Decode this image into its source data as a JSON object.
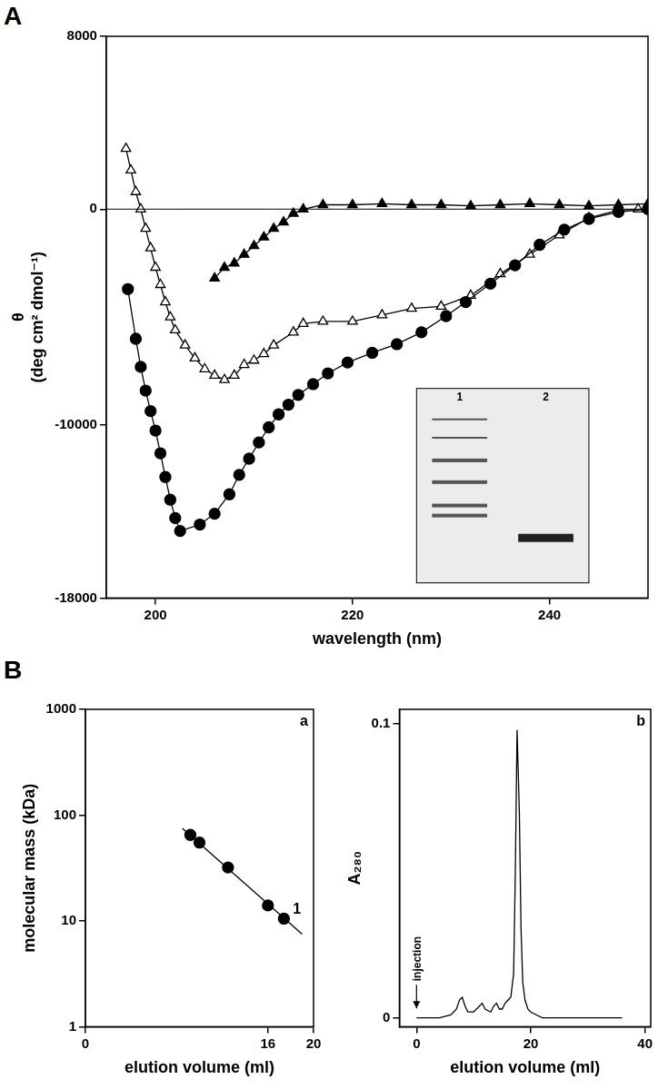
{
  "figure": {
    "panel_labels": [
      "A",
      "B"
    ]
  },
  "chart_data": [
    {
      "type": "line",
      "x_label": "wavelength (nm)",
      "y_label": [
        "θ",
        "(deg cm² dmol⁻¹)"
      ],
      "xlim": [
        195,
        250
      ],
      "xticks": [
        200,
        220,
        240
      ],
      "ylim": [
        -18000,
        8000
      ],
      "yticks": [
        -18000,
        -10000,
        0,
        8000
      ],
      "grid": false,
      "series": [
        {
          "marker": "filled_circle",
          "color": "#000000",
          "x": [
            197.2,
            198,
            198.5,
            199,
            199.5,
            200,
            200.5,
            201,
            201.5,
            202,
            202.5,
            204.5,
            206,
            207.5,
            208.5,
            209.5,
            210.5,
            211.5,
            212.5,
            213.5,
            214.5,
            216,
            217.5,
            219.5,
            222,
            224.5,
            227,
            229.5,
            231.5,
            234,
            236.5,
            239,
            241.5,
            244,
            247,
            250
          ],
          "values": [
            -3700,
            -6000,
            -7300,
            -8400,
            -9350,
            -10250,
            -11300,
            -12400,
            -13450,
            -14300,
            -14900,
            -14600,
            -14100,
            -13200,
            -12300,
            -11550,
            -10800,
            -10100,
            -9500,
            -9050,
            -8600,
            -8100,
            -7600,
            -7100,
            -6650,
            -6250,
            -5700,
            -4950,
            -4300,
            -3450,
            -2600,
            -1650,
            -950,
            -450,
            -130,
            0
          ]
        },
        {
          "marker": "open_triangle",
          "color": "#000000",
          "x": [
            197,
            197.5,
            198,
            198.5,
            199,
            199.5,
            200,
            200.5,
            201,
            201.5,
            202,
            203,
            204,
            205,
            206,
            207,
            208,
            209,
            210,
            211,
            212,
            214,
            215,
            217,
            220,
            223,
            226,
            229,
            232,
            235,
            238,
            241,
            244,
            247,
            249
          ],
          "values": [
            2800,
            1800,
            800,
            0,
            -900,
            -1800,
            -2700,
            -3500,
            -4300,
            -5000,
            -5600,
            -6300,
            -6900,
            -7400,
            -7700,
            -7900,
            -7700,
            -7200,
            -7000,
            -6700,
            -6300,
            -5700,
            -5300,
            -5200,
            -5200,
            -4900,
            -4600,
            -4500,
            -4000,
            -3000,
            -2100,
            -1200,
            -400,
            -50,
            0
          ]
        },
        {
          "marker": "filled_triangle",
          "color": "#000000",
          "x": [
            206,
            207,
            208,
            209,
            210,
            211,
            212,
            213,
            214,
            215,
            217,
            220,
            223,
            226,
            229,
            232,
            235,
            238,
            241,
            244,
            247,
            250
          ],
          "values": [
            -3200,
            -2700,
            -2500,
            -2100,
            -1700,
            -1300,
            -900,
            -600,
            -200,
            0,
            200,
            200,
            250,
            200,
            200,
            150,
            200,
            250,
            200,
            150,
            200,
            250
          ]
        }
      ],
      "inset": {
        "type": "gel",
        "lanes": [
          "1",
          "2"
        ]
      }
    },
    {
      "type": "scatter",
      "title": "a",
      "x_label": "elution volume (ml)",
      "y_label": "molecular mass (kDa)",
      "xlim": [
        0,
        20
      ],
      "xticks": [
        0,
        16,
        20
      ],
      "ylim": [
        1,
        1000
      ],
      "yticks": [
        1,
        10,
        100,
        1000
      ],
      "log": "y",
      "grid": false,
      "series": [
        {
          "type": "scatter",
          "marker": "filled_circle",
          "color": "#000000",
          "x": [
            9.2,
            10,
            12.5,
            16,
            17.4
          ],
          "values": [
            65,
            55,
            32,
            14,
            10.5
          ]
        },
        {
          "type": "line",
          "marker": "none",
          "color": "#000000",
          "x": [
            8.5,
            19
          ],
          "values": [
            75,
            7.5
          ]
        }
      ],
      "annotations": [
        {
          "text": "1",
          "x": 17.4,
          "y": 10.5
        }
      ]
    },
    {
      "type": "line",
      "title": "b",
      "x_label": "elution volume (ml)",
      "y_label": "A₂₈₀",
      "xlim": [
        -3,
        41
      ],
      "xticks": [
        0,
        20,
        40
      ],
      "ylim": [
        -0.003,
        0.105
      ],
      "yticks": [
        0,
        0.1
      ],
      "grid": false,
      "series": [
        {
          "marker": "none",
          "color": "#000000",
          "x": [
            0,
            2,
            4,
            6,
            7,
            7.5,
            8,
            8.5,
            9,
            10,
            11,
            11.5,
            12,
            13,
            13.5,
            14,
            14.5,
            15,
            15.5,
            16,
            16.5,
            17,
            17.3,
            17.6,
            18,
            18.3,
            18.6,
            19,
            19.5,
            20,
            21,
            22,
            24,
            26,
            28,
            30,
            32,
            34,
            36
          ],
          "values": [
            0,
            0,
            0,
            0.001,
            0.003,
            0.006,
            0.007,
            0.004,
            0.002,
            0.002,
            0.004,
            0.005,
            0.003,
            0.002,
            0.004,
            0.005,
            0.003,
            0.003,
            0.005,
            0.006,
            0.007,
            0.015,
            0.05,
            0.098,
            0.07,
            0.03,
            0.012,
            0.006,
            0.003,
            0.002,
            0.001,
            0,
            0,
            0,
            0,
            0,
            0,
            0,
            0
          ]
        }
      ],
      "annotations": [
        {
          "text": "injection",
          "x": 0,
          "y": 0.002
        }
      ]
    }
  ]
}
